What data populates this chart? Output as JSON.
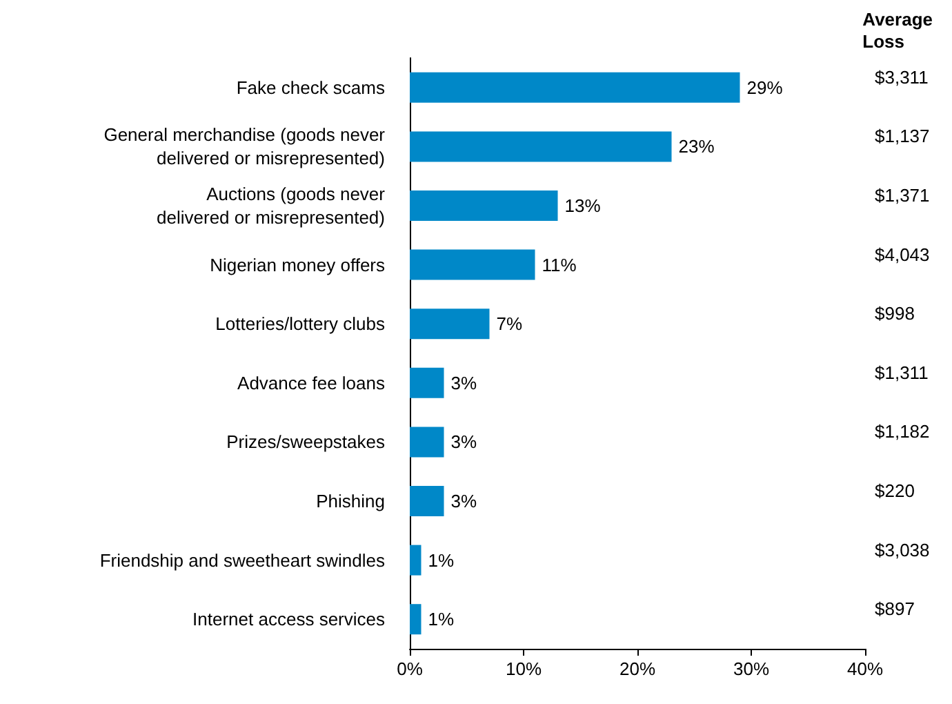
{
  "chart_data": {
    "type": "bar",
    "orientation": "horizontal",
    "categories": [
      "Fake check scams",
      "General merchandise (goods never\ndelivered or misrepresented)",
      "Auctions (goods never\ndelivered or misrepresented)",
      "Nigerian money offers",
      "Lotteries/lottery clubs",
      "Advance fee loans",
      "Prizes/sweepstakes",
      "Phishing",
      "Friendship and sweetheart swindles",
      "Internet access services"
    ],
    "values": [
      29,
      23,
      13,
      11,
      7,
      3,
      3,
      3,
      1,
      1
    ],
    "value_labels": [
      "29%",
      "23%",
      "13%",
      "11%",
      "7%",
      "3%",
      "3%",
      "3%",
      "1%",
      "1%"
    ],
    "color": "#0088c8",
    "xlim": [
      0,
      40
    ],
    "xticks": [
      {
        "value": 0,
        "label": "0%"
      },
      {
        "value": 10,
        "label": "10%"
      },
      {
        "value": 20,
        "label": "20%"
      },
      {
        "value": 30,
        "label": "30%"
      },
      {
        "value": 40,
        "label": "40%"
      }
    ],
    "grid": false,
    "annotations": [
      "Average\nLoss",
      "$3,311",
      "$1,137",
      "$1,371",
      "$4,043",
      "$998",
      "$1,311",
      "$1,182",
      "$220",
      "$3,038",
      "$897"
    ]
  }
}
